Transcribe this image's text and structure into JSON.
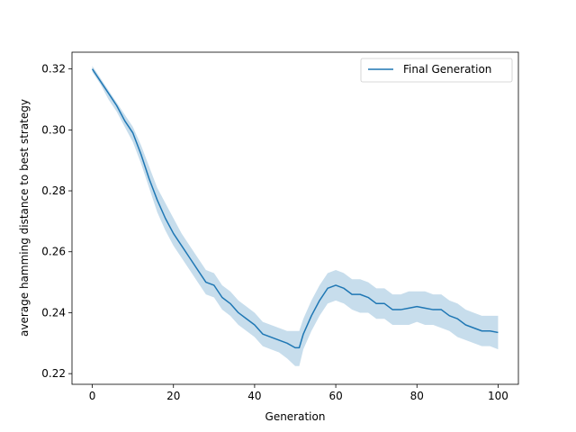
{
  "chart_data": {
    "type": "line",
    "title": "",
    "xlabel": "Generation",
    "ylabel": "average hamming distance to best strategy",
    "xlim": [
      -5,
      105
    ],
    "ylim": [
      0.2165,
      0.3255
    ],
    "xticks": [
      0,
      20,
      40,
      60,
      80,
      100
    ],
    "yticks": [
      0.22,
      0.24,
      0.26,
      0.28,
      0.3,
      0.32
    ],
    "ytick_labels": [
      "0.22",
      "0.24",
      "0.26",
      "0.28",
      "0.30",
      "0.32"
    ],
    "grid": false,
    "legend_position": "top-right",
    "colors": {
      "line": "#1f77b4",
      "band": "#1f77b4"
    },
    "series": [
      {
        "name": "Final Generation",
        "x": [
          0,
          2,
          4,
          6,
          8,
          10,
          12,
          14,
          16,
          18,
          20,
          22,
          24,
          26,
          28,
          30,
          32,
          34,
          36,
          38,
          40,
          42,
          44,
          46,
          48,
          50,
          51,
          52,
          54,
          56,
          58,
          60,
          62,
          64,
          66,
          68,
          70,
          72,
          74,
          76,
          78,
          80,
          82,
          84,
          86,
          88,
          90,
          92,
          94,
          96,
          98,
          100
        ],
        "y": [
          0.32,
          0.316,
          0.312,
          0.308,
          0.303,
          0.299,
          0.292,
          0.284,
          0.277,
          0.271,
          0.266,
          0.262,
          0.258,
          0.254,
          0.25,
          0.249,
          0.245,
          0.243,
          0.24,
          0.238,
          0.236,
          0.233,
          0.232,
          0.231,
          0.23,
          0.2285,
          0.2285,
          0.233,
          0.239,
          0.244,
          0.248,
          0.249,
          0.248,
          0.246,
          0.246,
          0.245,
          0.243,
          0.243,
          0.241,
          0.241,
          0.2415,
          0.242,
          0.2415,
          0.241,
          0.241,
          0.239,
          0.238,
          0.236,
          0.235,
          0.234,
          0.234,
          0.2335
        ],
        "y_lower": [
          0.319,
          0.315,
          0.31,
          0.306,
          0.301,
          0.296,
          0.289,
          0.281,
          0.273,
          0.267,
          0.262,
          0.258,
          0.254,
          0.25,
          0.246,
          0.245,
          0.241,
          0.239,
          0.236,
          0.234,
          0.232,
          0.229,
          0.228,
          0.227,
          0.225,
          0.2225,
          0.2225,
          0.228,
          0.234,
          0.239,
          0.243,
          0.244,
          0.243,
          0.241,
          0.24,
          0.24,
          0.238,
          0.238,
          0.236,
          0.236,
          0.236,
          0.237,
          0.236,
          0.236,
          0.235,
          0.234,
          0.232,
          0.231,
          0.23,
          0.229,
          0.229,
          0.228
        ],
        "y_upper": [
          0.321,
          0.317,
          0.313,
          0.309,
          0.305,
          0.301,
          0.295,
          0.288,
          0.281,
          0.276,
          0.271,
          0.266,
          0.262,
          0.258,
          0.254,
          0.253,
          0.249,
          0.247,
          0.244,
          0.242,
          0.24,
          0.237,
          0.236,
          0.235,
          0.234,
          0.234,
          0.234,
          0.238,
          0.244,
          0.249,
          0.253,
          0.254,
          0.253,
          0.251,
          0.251,
          0.25,
          0.248,
          0.248,
          0.246,
          0.246,
          0.247,
          0.247,
          0.247,
          0.246,
          0.246,
          0.244,
          0.243,
          0.241,
          0.24,
          0.239,
          0.239,
          0.239
        ]
      }
    ]
  }
}
